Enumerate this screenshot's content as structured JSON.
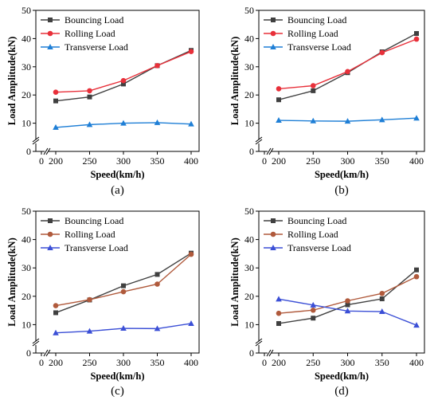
{
  "figure": {
    "panel_labels": [
      "(a)",
      "(b)",
      "(c)",
      "(d)"
    ]
  },
  "chart_data": [
    {
      "type": "line",
      "panel": "(a)",
      "xlabel": "Speed(km/h)",
      "ylabel": "Load Amplitude(kN)",
      "x": [
        200,
        250,
        300,
        350,
        400
      ],
      "x_ticks": [
        0,
        200,
        250,
        300,
        350,
        400
      ],
      "y_ticks": [
        0,
        10,
        20,
        30,
        40,
        50
      ],
      "ylim": [
        0,
        50
      ],
      "axis_break": true,
      "grid": false,
      "legend_position": "top-left",
      "series": [
        {
          "name": "Bouncing Load",
          "color": "#404040",
          "marker": "square",
          "values": [
            17.9,
            19.3,
            23.9,
            30.4,
            35.8
          ]
        },
        {
          "name": "Rolling Load",
          "color": "#e8303a",
          "marker": "circle",
          "values": [
            21.0,
            21.5,
            25.1,
            30.4,
            35.4
          ]
        },
        {
          "name": "Transverse Load",
          "color": "#1f7fd6",
          "marker": "triangle",
          "values": [
            8.5,
            9.5,
            10.0,
            10.2,
            9.7
          ]
        }
      ]
    },
    {
      "type": "line",
      "panel": "(b)",
      "xlabel": "Speed(km/h)",
      "ylabel": "Load Amplitude(kN)",
      "x": [
        200,
        250,
        300,
        350,
        400
      ],
      "x_ticks": [
        0,
        200,
        250,
        300,
        350,
        400
      ],
      "y_ticks": [
        0,
        10,
        20,
        30,
        40,
        50
      ],
      "ylim": [
        0,
        50
      ],
      "axis_break": true,
      "grid": false,
      "legend_position": "top-left",
      "series": [
        {
          "name": "Bouncing Load",
          "color": "#404040",
          "marker": "square",
          "values": [
            18.3,
            21.5,
            27.9,
            35.3,
            41.8
          ]
        },
        {
          "name": "Rolling Load",
          "color": "#e8303a",
          "marker": "circle",
          "values": [
            22.2,
            23.3,
            28.3,
            35.0,
            39.8
          ]
        },
        {
          "name": "Transverse Load",
          "color": "#1f7fd6",
          "marker": "triangle",
          "values": [
            11.0,
            10.8,
            10.7,
            11.2,
            11.8
          ]
        }
      ]
    },
    {
      "type": "line",
      "panel": "(c)",
      "xlabel": "Speed(km/h)",
      "ylabel": "Load Amplitude(kN)",
      "x": [
        200,
        250,
        300,
        350,
        400
      ],
      "x_ticks": [
        0,
        200,
        250,
        300,
        350,
        400
      ],
      "y_ticks": [
        0,
        10,
        20,
        30,
        40,
        50
      ],
      "ylim": [
        0,
        50
      ],
      "axis_break": true,
      "grid": false,
      "legend_position": "top-left",
      "series": [
        {
          "name": "Bouncing Load",
          "color": "#404040",
          "marker": "square",
          "values": [
            14.2,
            18.7,
            23.7,
            27.7,
            35.2
          ]
        },
        {
          "name": "Rolling Load",
          "color": "#b05a3c",
          "marker": "circle",
          "values": [
            16.7,
            18.8,
            21.6,
            24.3,
            34.8
          ]
        },
        {
          "name": "Transverse Load",
          "color": "#3b4fd6",
          "marker": "triangle",
          "values": [
            7.1,
            7.7,
            8.7,
            8.6,
            10.4
          ]
        }
      ]
    },
    {
      "type": "line",
      "panel": "(d)",
      "xlabel": "Speed(km/h)",
      "ylabel": "Load Amplitude(kN)",
      "x": [
        200,
        250,
        300,
        350,
        400
      ],
      "x_ticks": [
        0,
        200,
        250,
        300,
        350,
        400
      ],
      "y_ticks": [
        0,
        10,
        20,
        30,
        40,
        50
      ],
      "ylim": [
        0,
        50
      ],
      "axis_break": true,
      "grid": false,
      "legend_position": "top-left",
      "series": [
        {
          "name": "Bouncing Load",
          "color": "#404040",
          "marker": "square",
          "values": [
            10.4,
            12.3,
            17.0,
            19.1,
            29.3
          ]
        },
        {
          "name": "Rolling Load",
          "color": "#b05a3c",
          "marker": "circle",
          "values": [
            14.0,
            15.1,
            18.4,
            21.0,
            26.9
          ]
        },
        {
          "name": "Transverse Load",
          "color": "#3b4fd6",
          "marker": "triangle",
          "values": [
            19.0,
            16.9,
            14.8,
            14.6,
            9.8
          ]
        }
      ]
    }
  ]
}
